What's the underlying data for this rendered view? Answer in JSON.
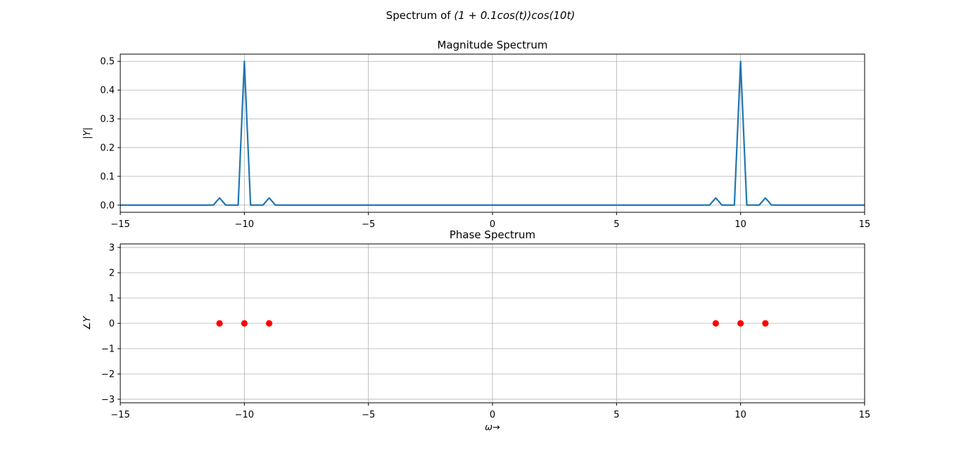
{
  "figure": {
    "suptitle_prefix": "Spectrum of ",
    "suptitle_math": "(1 + 0.1cos(t))cos(10t)"
  },
  "chart_data": [
    {
      "type": "line",
      "title": "Magnitude Spectrum",
      "xlabel": "",
      "ylabel": "|Y|",
      "xlim": [
        -15,
        15
      ],
      "ylim": [
        -0.025,
        0.525
      ],
      "xticks": [
        -15,
        -10,
        -5,
        0,
        5,
        10,
        15
      ],
      "xtick_labels": [
        "−15",
        "−10",
        "−5",
        "0",
        "5",
        "10",
        "15"
      ],
      "yticks": [
        0.0,
        0.1,
        0.2,
        0.3,
        0.4,
        0.5
      ],
      "ytick_labels": [
        "0.0",
        "0.1",
        "0.2",
        "0.3",
        "0.4",
        "0.5"
      ],
      "grid": true,
      "color": "#1f77b4",
      "series": [
        {
          "x": [
            -15,
            -11.25,
            -11,
            -10.75,
            -10.25,
            -10,
            -9.75,
            -9.25,
            -9,
            -8.75,
            8.75,
            9,
            9.25,
            9.75,
            10,
            10.25,
            10.75,
            11,
            11.25,
            15
          ],
          "y": [
            0,
            0,
            0.025,
            0,
            0,
            0.5,
            0,
            0,
            0.025,
            0,
            0,
            0.025,
            0,
            0,
            0.5,
            0,
            0,
            0.025,
            0,
            0
          ]
        }
      ]
    },
    {
      "type": "scatter",
      "title": "Phase Spectrum",
      "xlabel": "ω→",
      "ylabel": "∠Y",
      "xlim": [
        -15,
        15
      ],
      "ylim": [
        -3.14,
        3.14
      ],
      "xticks": [
        -15,
        -10,
        -5,
        0,
        5,
        10,
        15
      ],
      "xtick_labels": [
        "−15",
        "−10",
        "−5",
        "0",
        "5",
        "10",
        "15"
      ],
      "yticks": [
        -3,
        -2,
        -1,
        0,
        1,
        2,
        3
      ],
      "ytick_labels": [
        "−3",
        "−2",
        "−1",
        "0",
        "1",
        "2",
        "3"
      ],
      "grid": true,
      "color": "#ff0000",
      "series": [
        {
          "x": [
            -11,
            -10,
            -9,
            9,
            10,
            11
          ],
          "y": [
            0,
            0,
            0,
            0,
            0,
            0
          ]
        }
      ]
    }
  ]
}
